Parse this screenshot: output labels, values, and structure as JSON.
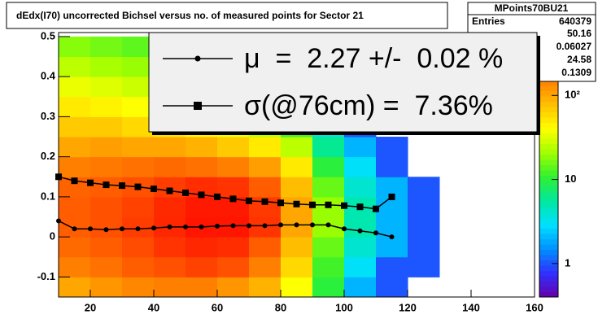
{
  "title": "dEdx(I70) uncorrected Bichsel versus no. of measured points for Sector 21",
  "stats": {
    "title": "MPoints70BU21",
    "entries_label": "Entries",
    "entries": 640379,
    "values": [
      50.16,
      0.06027,
      24.58,
      0.1309
    ]
  },
  "chart_data": {
    "type": "heatmap",
    "xlim": [
      10,
      160
    ],
    "ylim": [
      -0.15,
      0.51
    ],
    "xticks": [
      20,
      40,
      60,
      80,
      100,
      120,
      140,
      160
    ],
    "yticks": [
      -0.1,
      0,
      0.1,
      0.2,
      0.3,
      0.4,
      0.5
    ],
    "xbins": [
      10,
      20,
      30,
      40,
      50,
      60,
      70,
      80,
      90,
      100,
      110,
      120,
      130,
      140,
      150,
      160
    ],
    "ybins": [
      -0.15,
      -0.1,
      -0.05,
      0,
      0.05,
      0.1,
      0.15,
      0.2,
      0.25,
      0.3,
      0.35,
      0.4,
      0.45,
      0.5
    ],
    "z": [
      [
        100,
        120,
        140,
        150,
        150,
        120,
        90,
        40,
        10,
        2,
        1,
        null,
        null,
        null,
        null
      ],
      [
        150,
        170,
        200,
        220,
        250,
        220,
        150,
        60,
        12,
        3,
        1,
        1,
        null,
        null,
        null
      ],
      [
        180,
        200,
        230,
        280,
        330,
        300,
        200,
        80,
        15,
        4,
        2,
        1,
        null,
        null,
        null
      ],
      [
        200,
        220,
        260,
        330,
        420,
        420,
        280,
        100,
        20,
        5,
        2,
        1,
        null,
        null,
        null
      ],
      [
        200,
        220,
        250,
        320,
        400,
        400,
        270,
        100,
        20,
        5,
        2,
        1,
        null,
        null,
        null
      ],
      [
        190,
        200,
        220,
        260,
        300,
        280,
        200,
        80,
        15,
        4,
        2,
        1,
        null,
        null,
        null
      ],
      [
        150,
        160,
        170,
        180,
        170,
        150,
        110,
        50,
        10,
        3,
        1,
        null,
        null,
        null,
        null
      ],
      [
        100,
        110,
        100,
        100,
        90,
        70,
        50,
        25,
        6,
        2,
        1,
        null,
        null,
        null,
        null
      ],
      [
        70,
        70,
        60,
        55,
        45,
        35,
        25,
        12,
        4,
        1,
        null,
        null,
        null,
        null,
        null
      ],
      [
        50,
        45,
        40,
        35,
        28,
        22,
        15,
        8,
        3,
        1,
        null,
        null,
        null,
        null,
        null
      ],
      [
        35,
        32,
        28,
        25,
        20,
        15,
        10,
        6,
        2,
        null,
        null,
        null,
        null,
        null,
        null
      ],
      [
        25,
        22,
        20,
        18,
        14,
        11,
        8,
        4,
        2,
        null,
        null,
        null,
        null,
        null,
        null
      ],
      [
        18,
        16,
        14,
        12,
        10,
        8,
        6,
        3,
        1,
        null,
        null,
        null,
        null,
        null,
        null
      ]
    ],
    "zlog": true,
    "zlim": [
      0.4,
      560
    ],
    "zticks": [
      1,
      10,
      {
        "value": 100,
        "label": "10²"
      }
    ],
    "palette": [
      "#6600aa",
      "#3030ff",
      "#0090ff",
      "#00e0ff",
      "#00e8a0",
      "#30f030",
      "#a0ff00",
      "#ffff00",
      "#ffc000",
      "#ff8000",
      "#ff3000",
      "#ff0000"
    ],
    "series": [
      {
        "name": "μ  =  2.27 +/-  0.02 %",
        "color": "#000000",
        "marker": "circle",
        "x": [
          10,
          15,
          20,
          25,
          30,
          35,
          40,
          45,
          50,
          55,
          60,
          65,
          70,
          75,
          80,
          85,
          90,
          95,
          100,
          105,
          110,
          115
        ],
        "values": [
          0.04,
          0.02,
          0.02,
          0.018,
          0.02,
          0.02,
          0.022,
          0.025,
          0.025,
          0.025,
          0.027,
          0.028,
          0.028,
          0.028,
          0.03,
          0.03,
          0.03,
          0.03,
          0.02,
          0.015,
          0.01,
          0.0
        ]
      },
      {
        "name": "σ(@76cm) =  7.36%",
        "color": "#000000",
        "marker": "square",
        "x": [
          10,
          15,
          20,
          25,
          30,
          35,
          40,
          45,
          50,
          55,
          60,
          65,
          70,
          75,
          80,
          85,
          90,
          95,
          100,
          105,
          110,
          115
        ],
        "values": [
          0.15,
          0.14,
          0.135,
          0.13,
          0.128,
          0.125,
          0.12,
          0.115,
          0.11,
          0.105,
          0.1,
          0.095,
          0.09,
          0.088,
          0.085,
          0.082,
          0.08,
          0.08,
          0.078,
          0.075,
          0.07,
          0.1
        ]
      }
    ]
  }
}
